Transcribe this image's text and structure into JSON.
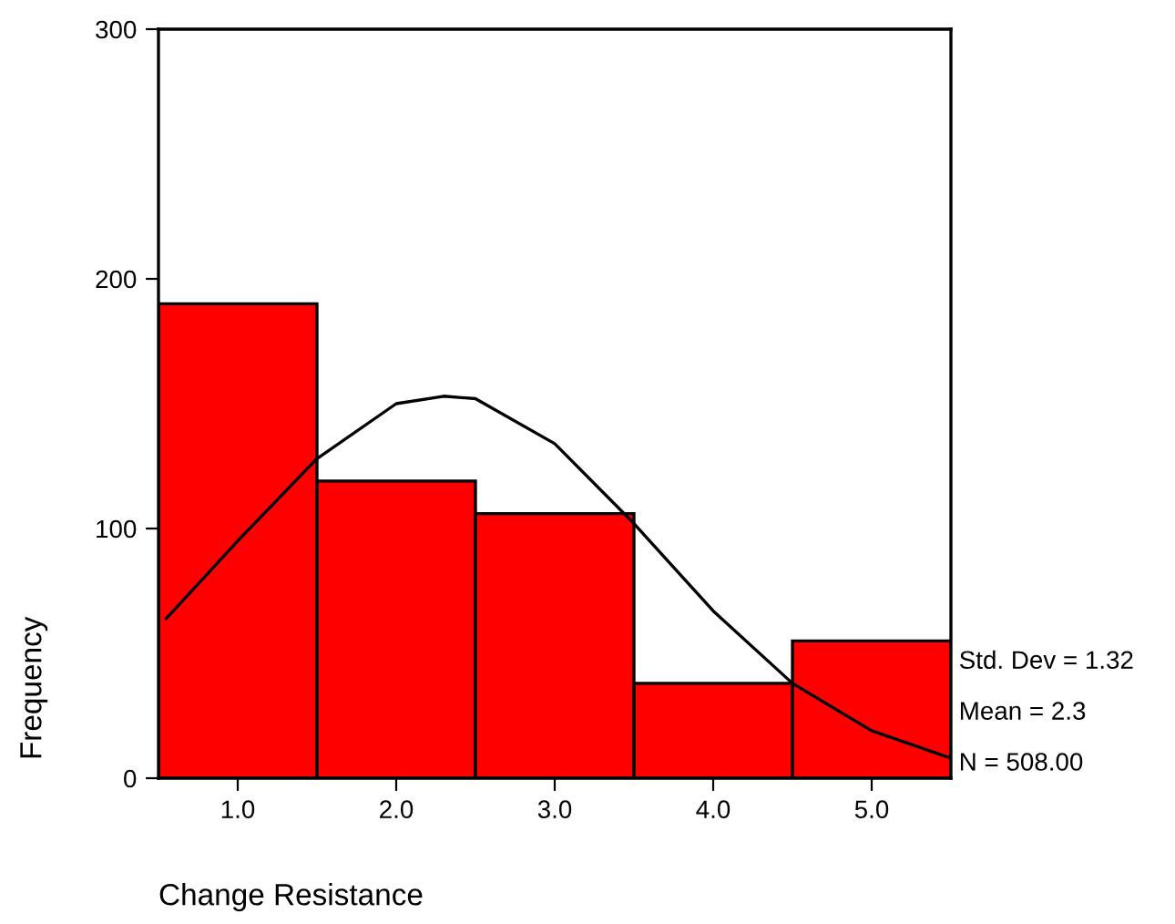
{
  "chart_data": {
    "type": "histogram",
    "xlabel": "Change Resistance",
    "ylabel": "Frequency",
    "bins": [
      0.5,
      1.5,
      2.5,
      3.5,
      4.5,
      5.5
    ],
    "series": [
      {
        "color": "#ff0000",
        "values": [
          190,
          119,
          106,
          38,
          55
        ]
      },
      {
        "type": "line",
        "color": "#000000",
        "x": [
          0.55,
          1.0,
          1.5,
          2.0,
          2.3,
          2.5,
          3.0,
          3.5,
          4.0,
          4.5,
          5.0,
          5.5
        ],
        "values": [
          64,
          95,
          128,
          150,
          153,
          152,
          134,
          102,
          67,
          38,
          19,
          8
        ]
      }
    ],
    "xlim": [
      0.5,
      5.5
    ],
    "xticks": [
      {
        "value": 1,
        "label": "1.0"
      },
      {
        "value": 2,
        "label": "2.0"
      },
      {
        "value": 3,
        "label": "3.0"
      },
      {
        "value": 4,
        "label": "4.0"
      },
      {
        "value": 5,
        "label": "5.0"
      }
    ],
    "ylim": [
      0,
      300
    ],
    "yticks": [
      0,
      100,
      200,
      300
    ],
    "grid": false,
    "legend": false,
    "marker": "none",
    "line_style": "solid",
    "annotations": [
      "Std. Dev = 1.32",
      "Mean = 2.3",
      "N = 508.00"
    ]
  }
}
